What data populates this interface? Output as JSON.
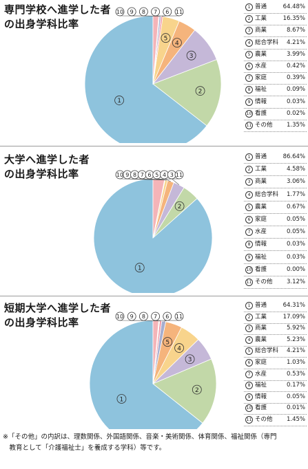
{
  "chart_data": [
    {
      "type": "pie",
      "title_lines": [
        "専門学校へ進学した者",
        "の出身学科比率"
      ],
      "slices": [
        {
          "label": "普通",
          "value": 64.48,
          "display": "64.48%",
          "color": "#8ec3dd"
        },
        {
          "label": "工業",
          "value": 16.35,
          "display": "16.35%",
          "color": "#c2d8a8"
        },
        {
          "label": "商業",
          "value": 8.67,
          "display": "8.67%",
          "color": "#c5b8d8"
        },
        {
          "label": "総合学科",
          "value": 4.21,
          "display": "4.21%",
          "color": "#f5b47c"
        },
        {
          "label": "農業",
          "value": 3.99,
          "display": "3.99%",
          "color": "#f8d48c"
        },
        {
          "label": "水産",
          "value": 0.42,
          "display": "0.42%",
          "color": "#f09aa8"
        },
        {
          "label": "家庭",
          "value": 0.39,
          "display": "0.39%",
          "color": "#a6aed0"
        },
        {
          "label": "福祉",
          "value": 0.09,
          "display": "0.09%",
          "color": "#cfe08a"
        },
        {
          "label": "情報",
          "value": 0.03,
          "display": "0.03%",
          "color": "#8fb8d8"
        },
        {
          "label": "看護",
          "value": 0.02,
          "display": "0.02%",
          "color": "#e8c890"
        },
        {
          "label": "その他",
          "value": 1.35,
          "display": "1.35%",
          "color": "#f4b4b8"
        }
      ]
    },
    {
      "type": "pie",
      "title_lines": [
        "大学へ進学した者",
        "の出身学科比率"
      ],
      "slices": [
        {
          "label": "普通",
          "value": 86.64,
          "display": "86.64%",
          "color": "#8ec3dd"
        },
        {
          "label": "工業",
          "value": 4.58,
          "display": "4.58%",
          "color": "#c2d8a8"
        },
        {
          "label": "商業",
          "value": 3.06,
          "display": "3.06%",
          "color": "#c5b8d8"
        },
        {
          "label": "総合学科",
          "value": 1.77,
          "display": "1.77%",
          "color": "#f5b47c"
        },
        {
          "label": "農業",
          "value": 0.67,
          "display": "0.67%",
          "color": "#f8d48c"
        },
        {
          "label": "家庭",
          "value": 0.05,
          "display": "0.05%",
          "color": "#a6aed0"
        },
        {
          "label": "水産",
          "value": 0.05,
          "display": "0.05%",
          "color": "#f09aa8"
        },
        {
          "label": "情報",
          "value": 0.03,
          "display": "0.03%",
          "color": "#8fb8d8"
        },
        {
          "label": "福祉",
          "value": 0.03,
          "display": "0.03%",
          "color": "#cfe08a"
        },
        {
          "label": "看護",
          "value": 0.0,
          "display": "0.00%",
          "color": "#e8c890"
        },
        {
          "label": "その他",
          "value": 3.12,
          "display": "3.12%",
          "color": "#f4b4b8"
        }
      ]
    },
    {
      "type": "pie",
      "title_lines": [
        "短期大学へ進学した者",
        "の出身学科比率"
      ],
      "slices": [
        {
          "label": "普通",
          "value": 64.31,
          "display": "64.31%",
          "color": "#8ec3dd"
        },
        {
          "label": "工業",
          "value": 17.09,
          "display": "17.09%",
          "color": "#c2d8a8"
        },
        {
          "label": "商業",
          "value": 5.92,
          "display": "5.92%",
          "color": "#c5b8d8"
        },
        {
          "label": "農業",
          "value": 5.23,
          "display": "5.23%",
          "color": "#f8d48c"
        },
        {
          "label": "総合学科",
          "value": 4.21,
          "display": "4.21%",
          "color": "#f5b47c"
        },
        {
          "label": "家庭",
          "value": 1.03,
          "display": "1.03%",
          "color": "#a6aed0"
        },
        {
          "label": "水産",
          "value": 0.53,
          "display": "0.53%",
          "color": "#f09aa8"
        },
        {
          "label": "福祉",
          "value": 0.17,
          "display": "0.17%",
          "color": "#cfe08a"
        },
        {
          "label": "情報",
          "value": 0.05,
          "display": "0.05%",
          "color": "#8fb8d8"
        },
        {
          "label": "看護",
          "value": 0.01,
          "display": "0.01%",
          "color": "#e8c890"
        },
        {
          "label": "その他",
          "value": 1.45,
          "display": "1.45%",
          "color": "#f4b4b8"
        }
      ]
    }
  ],
  "marks": [
    "①",
    "②",
    "③",
    "④",
    "⑤",
    "⑥",
    "⑦",
    "⑧",
    "⑨",
    "⑩",
    "⑪"
  ],
  "footnote": {
    "line1": "※「その他」の内訳は、理数関係、外国語関係、音楽・美術関係、体育関係、福祉関係（専門",
    "line2": "　教育として「介護福祉士」を養成する学科）等です。"
  }
}
